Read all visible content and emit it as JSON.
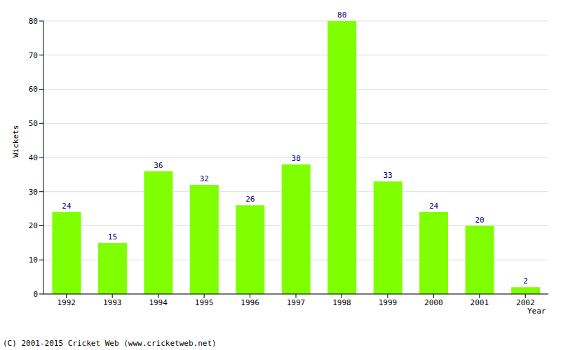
{
  "chart_data": {
    "type": "bar",
    "categories": [
      "1992",
      "1993",
      "1994",
      "1995",
      "1996",
      "1997",
      "1998",
      "1999",
      "2000",
      "2001",
      "2002"
    ],
    "values": [
      24,
      15,
      36,
      32,
      26,
      38,
      80,
      33,
      24,
      20,
      2
    ],
    "color": "#7fff00",
    "ylim": [
      0,
      80
    ],
    "yticks": [
      0,
      10,
      20,
      30,
      40,
      50,
      60,
      70,
      80
    ],
    "grid": true,
    "data_labels": true,
    "x_label": "Year",
    "y_label": "Wickets",
    "annotation": "(C) 2001-2015 Cricket Web (www.cricketweb.net)"
  }
}
